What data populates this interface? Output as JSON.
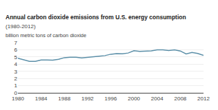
{
  "chart_data": {
    "type": "line",
    "title": "Annual carbon dioxide emissions from U.S. energy consumption",
    "subtitle": "(1980-2012)",
    "ylabel": "billion metric tons of carbon dioxide",
    "x": [
      1980,
      1981,
      1982,
      1983,
      1984,
      1985,
      1986,
      1987,
      1988,
      1989,
      1990,
      1991,
      1992,
      1993,
      1994,
      1995,
      1996,
      1997,
      1998,
      1999,
      2000,
      2001,
      2002,
      2003,
      2004,
      2005,
      2006,
      2007,
      2008,
      2009,
      2010,
      2011,
      2012
    ],
    "values": [
      4.81,
      4.62,
      4.38,
      4.38,
      4.57,
      4.57,
      4.55,
      4.68,
      4.9,
      4.96,
      4.97,
      4.87,
      4.97,
      5.05,
      5.11,
      5.19,
      5.38,
      5.46,
      5.44,
      5.55,
      5.87,
      5.77,
      5.82,
      5.85,
      5.99,
      5.99,
      5.89,
      6.0,
      5.83,
      5.42,
      5.64,
      5.48,
      5.22
    ],
    "color": "#5b8fa8",
    "xlim": [
      1980,
      2012
    ],
    "xticks": [
      1980,
      1984,
      1988,
      1992,
      1996,
      2000,
      2004,
      2008,
      2012
    ],
    "ylim": [
      0,
      7
    ],
    "yticks": [
      0,
      1,
      2,
      3,
      4,
      5,
      6,
      7
    ],
    "grid": "y"
  }
}
